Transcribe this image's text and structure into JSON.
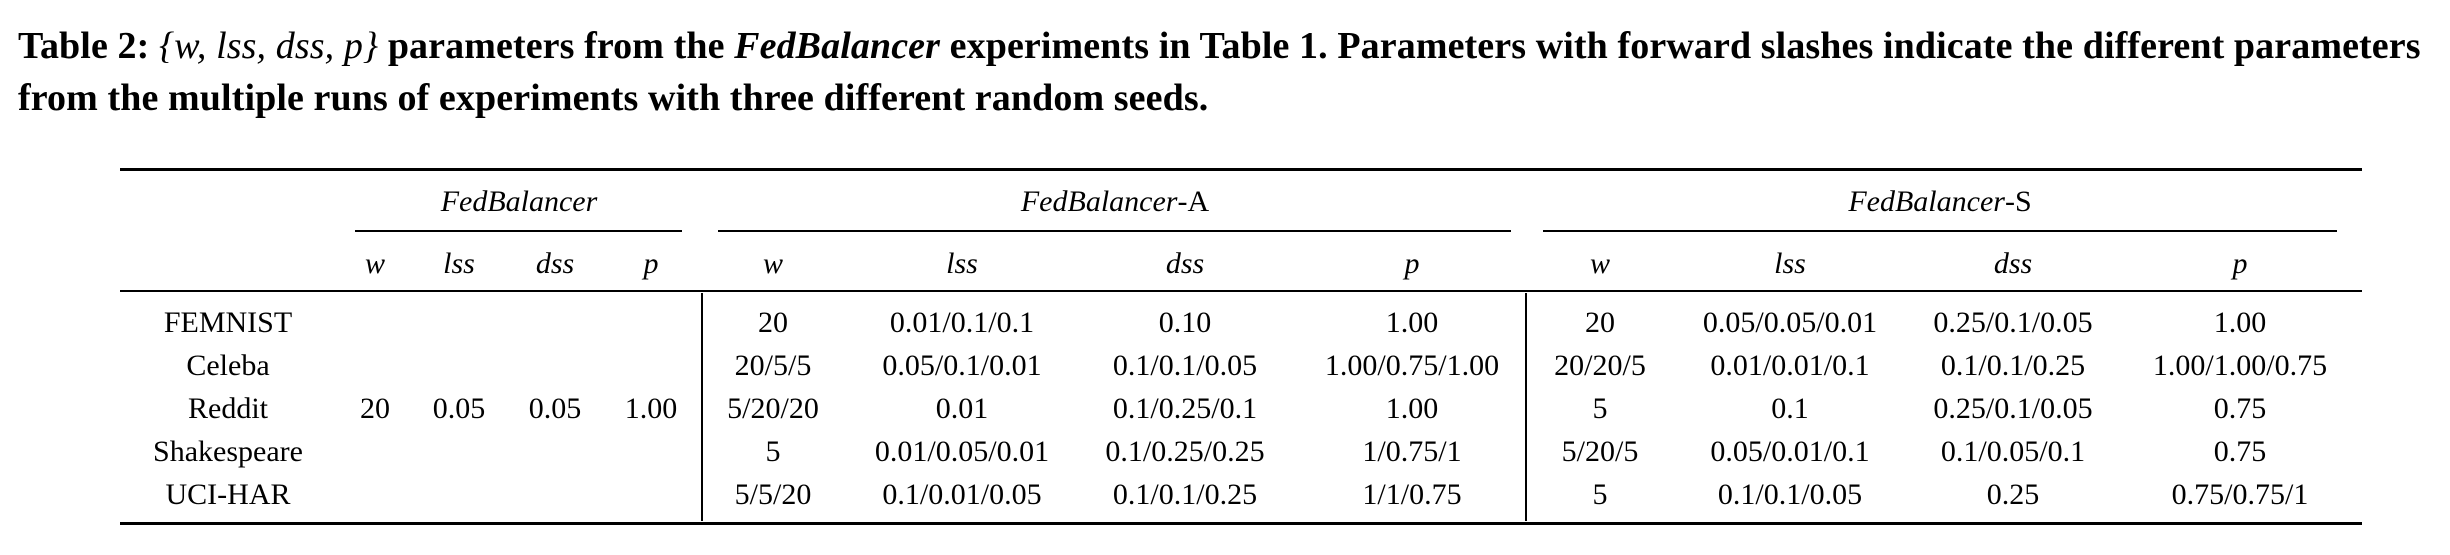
{
  "caption": {
    "label": "Table 2:",
    "math": "{w, lss, dss, p}",
    "text1": " parameters from the ",
    "emph": "FedBalancer",
    "text2": " experiments in Table 1. Parameters with forward slashes indicate the different parameters from the multiple runs of experiments with three different random seeds."
  },
  "table": {
    "groups": [
      {
        "name": "FedBalancer",
        "suffix": ""
      },
      {
        "name": "FedBalancer",
        "suffix": "-A"
      },
      {
        "name": "FedBalancer",
        "suffix": "-S"
      }
    ],
    "subheaders": [
      "w",
      "lss",
      "dss",
      "p",
      "w",
      "lss",
      "dss",
      "p",
      "w",
      "lss",
      "dss",
      "p"
    ],
    "fedbalancer_shared": [
      "20",
      "0.05",
      "0.05",
      "1.00"
    ],
    "rows": [
      {
        "dataset": "FEMNIST",
        "a": [
          "20",
          "0.01/0.1/0.1",
          "0.10",
          "1.00"
        ],
        "s": [
          "20",
          "0.05/0.05/0.01",
          "0.25/0.1/0.05",
          "1.00"
        ]
      },
      {
        "dataset": "Celeba",
        "a": [
          "20/5/5",
          "0.05/0.1/0.01",
          "0.1/0.1/0.05",
          "1.00/0.75/1.00"
        ],
        "s": [
          "20/20/5",
          "0.01/0.01/0.1",
          "0.1/0.1/0.25",
          "1.00/1.00/0.75"
        ]
      },
      {
        "dataset": "Reddit",
        "a": [
          "5/20/20",
          "0.01",
          "0.1/0.25/0.1",
          "1.00"
        ],
        "s": [
          "5",
          "0.1",
          "0.25/0.1/0.05",
          "0.75"
        ]
      },
      {
        "dataset": "Shakespeare",
        "a": [
          "5",
          "0.01/0.05/0.01",
          "0.1/0.25/0.25",
          "1/0.75/1"
        ],
        "s": [
          "5/20/5",
          "0.05/0.01/0.1",
          "0.1/0.05/0.1",
          "0.75"
        ]
      },
      {
        "dataset": "UCI-HAR",
        "a": [
          "5/5/20",
          "0.1/0.01/0.05",
          "0.1/0.1/0.25",
          "1/1/0.75"
        ],
        "s": [
          "5",
          "0.1/0.1/0.05",
          "0.25",
          "0.75/0.75/1"
        ]
      }
    ]
  }
}
